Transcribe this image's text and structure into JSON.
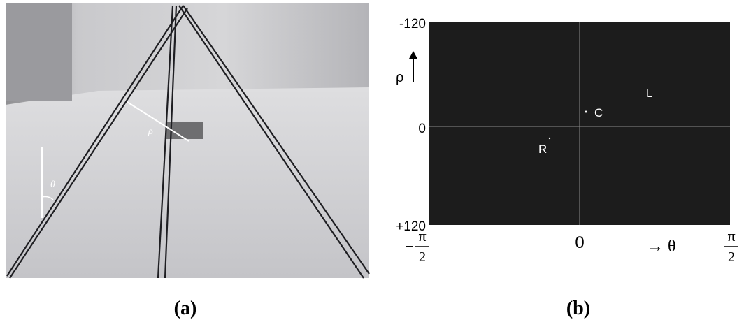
{
  "figure_a": {
    "rho_label": "ρ",
    "theta_label": "θ",
    "caption": "(a)"
  },
  "figure_b": {
    "y_top": "-120",
    "y_mid": "0",
    "y_bottom": "+120",
    "rho_axis": "ρ",
    "x_left": {
      "sign": "−",
      "numerator": "π",
      "denominator": "2"
    },
    "x_mid": "0",
    "theta_axis": "→ θ",
    "x_right": {
      "numerator": "π",
      "denominator": "2"
    },
    "points": [
      "C",
      "L",
      "R"
    ],
    "caption": "(b)"
  }
}
